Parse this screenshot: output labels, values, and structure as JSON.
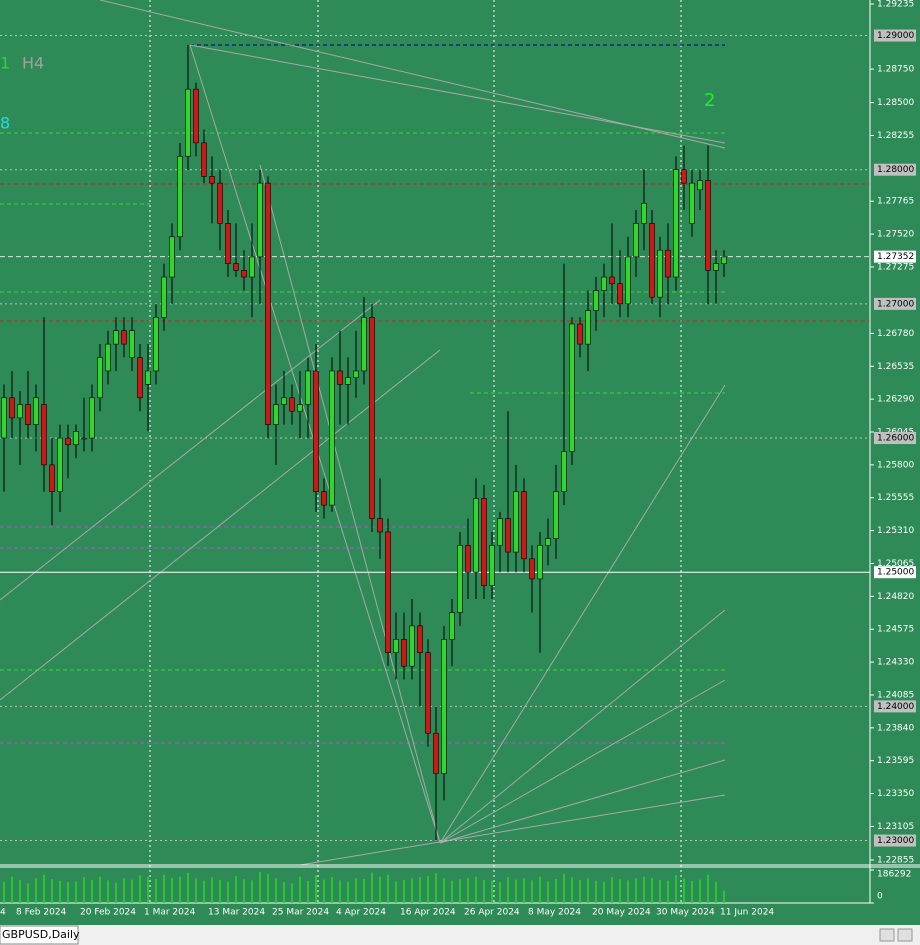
{
  "chart_data": {
    "type": "candlestick",
    "categories": [
      "4",
      null,
      "8 Feb 2024",
      null,
      null,
      null,
      null,
      null,
      null,
      null,
      "20 Feb 2024",
      null,
      null,
      null,
      null,
      null,
      null,
      null,
      "1 Mar 2024",
      null,
      null,
      null,
      null,
      null,
      null,
      null,
      "13 Mar 2024",
      null,
      null,
      null,
      null,
      null,
      null,
      null,
      "25 Mar 2024",
      null,
      null,
      null,
      null,
      null,
      null,
      null,
      "4 Apr 2024",
      null,
      null,
      null,
      null,
      null,
      null,
      null,
      "16 Apr 2024",
      null,
      null,
      null,
      null,
      null,
      null,
      null,
      "26 Apr 2024",
      null,
      null,
      null,
      null,
      null,
      null,
      null,
      "8 May 2024",
      null,
      null,
      null,
      null,
      null,
      null,
      null,
      "20 May 2024",
      null,
      null,
      null,
      null,
      null,
      null,
      null,
      "30 May 2024",
      null,
      null,
      null,
      null,
      null,
      null,
      null,
      "11 Jun 2024"
    ],
    "open": [
      1.26,
      1.263,
      1.2615,
      1.2625,
      1.261,
      1.2625,
      1.258,
      1.256,
      1.26,
      1.2595,
      1.26,
      1.26,
      1.263,
      1.265,
      1.267,
      1.268,
      1.266,
      1.266,
      1.264,
      1.265,
      1.269,
      1.272,
      1.275,
      1.281,
      1.286,
      1.282,
      1.2795,
      1.279,
      1.276,
      1.273,
      1.2725,
      1.272,
      1.2735,
      1.279,
      1.261,
      1.2625,
      1.263,
      1.262,
      1.2625,
      1.265,
      1.256,
      1.255,
      1.265,
      1.264,
      1.2645,
      1.265,
      1.269,
      1.254,
      1.253,
      1.244,
      1.245,
      1.243,
      1.246,
      1.244,
      1.238,
      1.235,
      1.245,
      1.247,
      1.252,
      1.25,
      1.2555,
      1.249,
      1.252,
      1.254,
      1.2515,
      1.256,
      1.251,
      1.2495,
      1.252,
      1.2525,
      1.256,
      1.259,
      1.2685,
      1.267,
      1.2695,
      1.271,
      1.272,
      1.2715,
      1.27,
      1.2735,
      1.276,
      1.276,
      1.2705,
      1.274,
      1.272,
      1.28,
      1.276,
      1.2785,
      1.2792,
      1.2725,
      1.273
    ],
    "high": [
      1.264,
      1.265,
      1.2635,
      1.265,
      1.264,
      1.269,
      1.26,
      1.261,
      1.261,
      1.261,
      1.263,
      1.264,
      1.267,
      1.268,
      1.269,
      1.269,
      1.269,
      1.267,
      1.267,
      1.27,
      1.273,
      1.276,
      1.282,
      1.2893,
      1.2865,
      1.283,
      1.281,
      1.28,
      1.277,
      1.276,
      1.274,
      1.276,
      1.28,
      1.2795,
      1.264,
      1.265,
      1.264,
      1.265,
      1.266,
      1.267,
      1.257,
      1.266,
      1.268,
      1.266,
      1.268,
      1.2705,
      1.27,
      1.257,
      1.254,
      1.247,
      1.247,
      1.248,
      1.247,
      1.245,
      1.24,
      1.246,
      1.248,
      1.253,
      1.254,
      1.257,
      1.2565,
      1.253,
      1.2545,
      1.262,
      1.258,
      1.257,
      1.252,
      1.253,
      1.254,
      1.258,
      1.273,
      1.269,
      1.269,
      1.271,
      1.272,
      1.273,
      1.276,
      1.274,
      1.275,
      1.277,
      1.28,
      1.277,
      1.275,
      1.276,
      1.281,
      1.2818,
      1.28,
      1.28,
      1.2818,
      1.274,
      1.274
    ],
    "low": [
      1.256,
      1.26,
      1.258,
      1.26,
      1.259,
      1.256,
      1.2535,
      1.2545,
      1.257,
      1.2585,
      1.259,
      1.259,
      1.262,
      1.264,
      1.265,
      1.266,
      1.265,
      1.262,
      1.2605,
      1.264,
      1.268,
      1.27,
      1.274,
      1.28,
      1.281,
      1.279,
      1.276,
      1.274,
      1.272,
      1.272,
      1.271,
      1.269,
      1.27,
      1.26,
      1.258,
      1.261,
      1.261,
      1.26,
      1.26,
      1.2545,
      1.254,
      1.2545,
      1.261,
      1.261,
      1.263,
      1.264,
      1.253,
      1.251,
      1.243,
      1.242,
      1.242,
      1.242,
      1.24,
      1.237,
      1.23,
      1.233,
      1.243,
      1.246,
      1.248,
      1.248,
      1.248,
      1.248,
      1.25,
      1.25,
      1.25,
      1.25,
      1.247,
      1.244,
      1.2505,
      1.251,
      1.255,
      1.258,
      1.266,
      1.265,
      1.268,
      1.269,
      1.27,
      1.269,
      1.269,
      1.272,
      1.274,
      1.27,
      1.269,
      1.27,
      1.271,
      1.277,
      1.275,
      1.277,
      1.27,
      1.27,
      1.272
    ],
    "close": [
      1.263,
      1.2615,
      1.2625,
      1.261,
      1.263,
      1.258,
      1.256,
      1.26,
      1.2595,
      1.2605,
      1.26,
      1.263,
      1.266,
      1.267,
      1.268,
      1.267,
      1.268,
      1.263,
      1.265,
      1.269,
      1.272,
      1.275,
      1.281,
      1.286,
      1.282,
      1.2795,
      1.279,
      1.276,
      1.273,
      1.2725,
      1.272,
      1.2735,
      1.279,
      1.261,
      1.2625,
      1.263,
      1.262,
      1.2625,
      1.265,
      1.256,
      1.255,
      1.265,
      1.264,
      1.2645,
      1.265,
      1.269,
      1.254,
      1.253,
      1.244,
      1.245,
      1.243,
      1.246,
      1.244,
      1.238,
      1.235,
      1.245,
      1.247,
      1.252,
      1.25,
      1.2555,
      1.249,
      1.252,
      1.254,
      1.2515,
      1.256,
      1.251,
      1.2495,
      1.252,
      1.2525,
      1.256,
      1.259,
      1.2685,
      1.267,
      1.2695,
      1.271,
      1.272,
      1.2715,
      1.27,
      1.2735,
      1.276,
      1.2775,
      1.2705,
      1.274,
      1.272,
      1.28,
      1.279,
      1.279,
      1.2792,
      1.2725,
      1.273,
      1.2735
    ],
    "volume": [
      120000,
      150000,
      130000,
      110000,
      140000,
      160000,
      135000,
      125000,
      118000,
      122000,
      145000,
      130000,
      150000,
      128000,
      115000,
      140000,
      132000,
      155000,
      148000,
      136000,
      160000,
      142000,
      150000,
      170000,
      138000,
      126000,
      144000,
      130000,
      120000,
      152000,
      134000,
      128000,
      175000,
      162000,
      140000,
      118000,
      110000,
      150000,
      124000,
      158000,
      132000,
      146000,
      128000,
      120000,
      140000,
      136000,
      172000,
      150000,
      160000,
      122000,
      130000,
      138000,
      145000,
      152000,
      168000,
      140000,
      126000,
      134000,
      142000,
      150000,
      130000,
      125000,
      118000,
      146000,
      132000,
      140000,
      128000,
      150000,
      122000,
      136000,
      165000,
      144000,
      130000,
      138000,
      126000,
      120000,
      146000,
      134000,
      128000,
      140000,
      150000,
      142000,
      130000,
      126000,
      158000,
      138000,
      124000,
      132000,
      160000,
      120000,
      70000
    ],
    "up_color": "#2fd62f",
    "down_color": "#d01818",
    "background": "#2e8b57",
    "ylim": [
      1.22855,
      1.29235
    ],
    "yticks": [
      1.29235,
      {
        "value": 1.2875,
        "label": "1.28750"
      },
      {
        "value": 1.285,
        "label": "1.28500"
      },
      1.28255,
      1.27765,
      {
        "value": 1.2752,
        "label": "1.27520"
      },
      1.27275,
      {
        "value": 1.2678,
        "label": "1.26780"
      },
      1.26535,
      {
        "value": 1.2629,
        "label": "1.26290"
      },
      1.26045,
      {
        "value": 1.258,
        "label": "1.25800"
      },
      1.25555,
      {
        "value": 1.2531,
        "label": "1.25310"
      },
      1.25065,
      {
        "value": 1.2482,
        "label": "1.24820"
      },
      1.24575,
      {
        "value": 1.2433,
        "label": "1.24330"
      },
      1.24085,
      {
        "value": 1.2384,
        "label": "1.23840"
      },
      1.23595,
      {
        "value": 1.2335,
        "label": "1.23350"
      },
      1.23105,
      1.22855
    ],
    "levels": [
      {
        "value": 1.29,
        "label": "1.29000",
        "color": "#c0c0c0"
      },
      {
        "value": 1.28,
        "label": "1.28000",
        "color": "#c0c0c0"
      },
      {
        "value": 1.27352,
        "label": "1.27352",
        "color": "#ffffff"
      },
      {
        "value": 1.27,
        "label": "1.27000",
        "color": "#c0c0c0"
      },
      {
        "value": 1.26,
        "label": "1.26000",
        "color": "#c0c0c0"
      },
      {
        "value": 1.25,
        "label": "1.25000",
        "color": "#ffffff"
      },
      {
        "value": 1.24,
        "label": "1.24000",
        "color": "#c0c0c0"
      },
      {
        "value": 1.23,
        "label": "1.23000",
        "color": "#c0c0c0"
      }
    ],
    "vlim": [
      0,
      186292
    ],
    "vticks": [
      186292,
      0
    ],
    "annotations": [
      {
        "text": "1",
        "color": "#22dd22"
      },
      {
        "text": "H4",
        "color": "#a0a0a0"
      },
      {
        "text": "8",
        "color": "#22dddd"
      },
      {
        "text": "2",
        "color": "#22ee22"
      }
    ]
  },
  "tab": {
    "label": "GBPUSD,Daily"
  }
}
